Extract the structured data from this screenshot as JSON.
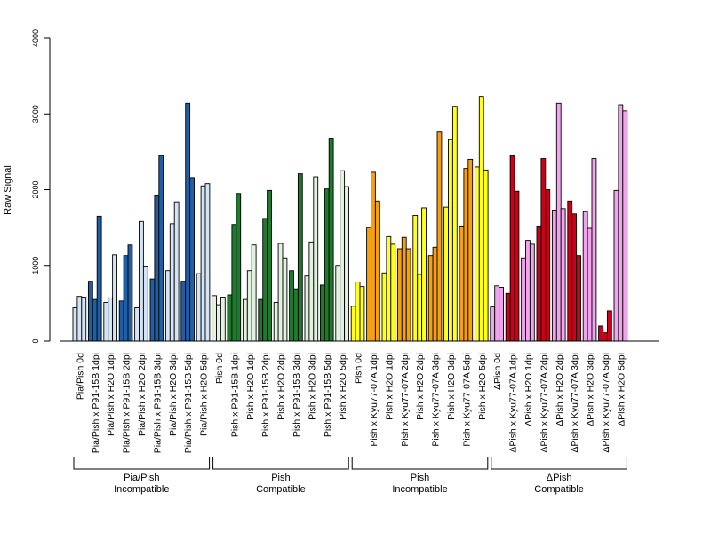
{
  "chart_data": {
    "type": "bar",
    "ylabel": "Raw Signal",
    "ylim": [
      0,
      4000
    ],
    "yticks": [
      0,
      1000,
      2000,
      3000,
      4000
    ],
    "grid": false,
    "legend": "none",
    "colors": {
      "pia": "#1f5fa6",
      "pia_light": "#d4e4f4",
      "pish_compat": "#1f7a2e",
      "pish_compat_light": "#e3f2e0",
      "pish_incompat": "#f5a00f",
      "pish_incompat_light": "#ffff1a",
      "delta": "#cc0018",
      "delta_light": "#f0a4ec"
    },
    "categories": [
      {
        "label": "Pia/Pish 0d",
        "color": "pia_light",
        "values": [
          440,
          590,
          580
        ]
      },
      {
        "label": "Pia/Pish x P91-15B 1dpi",
        "color": "pia",
        "values": [
          790,
          550,
          1650
        ]
      },
      {
        "label": "Pia/Pish x H2O 1dpi",
        "color": "pia_light",
        "values": [
          510,
          570,
          1140
        ]
      },
      {
        "label": "Pia/Pish x P91-15B 2dpi",
        "color": "pia",
        "values": [
          530,
          1130,
          1270
        ]
      },
      {
        "label": "Pia/Pish x H2O 2dpi",
        "color": "pia_light",
        "values": [
          440,
          1580,
          990
        ]
      },
      {
        "label": "Pia/Pish x P91-15B 3dpi",
        "color": "pia",
        "values": [
          820,
          1920,
          2450
        ]
      },
      {
        "label": "Pia/Pish x H2O 3dpi",
        "color": "pia_light",
        "values": [
          930,
          1550,
          1840
        ]
      },
      {
        "label": "Pia/Pish x P91-15B 5dpi",
        "color": "pia",
        "values": [
          790,
          3140,
          2160
        ]
      },
      {
        "label": "Pia/Pish x H2O 5dpi",
        "color": "pia_light",
        "values": [
          890,
          2050,
          2080
        ]
      },
      {
        "label": "Pish 0d",
        "color": "pish_compat_light",
        "values": [
          600,
          480,
          580
        ]
      },
      {
        "label": "Pish x P91-15B 1dpi",
        "color": "pish_compat",
        "values": [
          610,
          1540,
          1950
        ]
      },
      {
        "label": "Pish x H2O 1dpi",
        "color": "pish_compat_light",
        "values": [
          550,
          930,
          1270
        ]
      },
      {
        "label": "Pish x P91-15B 2dpi",
        "color": "pish_compat",
        "values": [
          550,
          1620,
          1990
        ]
      },
      {
        "label": "Pish x H2O 2dpi",
        "color": "pish_compat_light",
        "values": [
          510,
          1290,
          1100
        ]
      },
      {
        "label": "Pish x P91-15B 3dpi",
        "color": "pish_compat",
        "values": [
          930,
          690,
          2210
        ]
      },
      {
        "label": "Pish x H2O 3dpi",
        "color": "pish_compat_light",
        "values": [
          860,
          1310,
          2170
        ]
      },
      {
        "label": "Pish x P91-15B 5dpi",
        "color": "pish_compat",
        "values": [
          740,
          2010,
          2680
        ]
      },
      {
        "label": "Pish x H2O 5dpi",
        "color": "pish_compat_light",
        "values": [
          1000,
          2250,
          2040
        ]
      },
      {
        "label": "Pish 0d",
        "color": "pish_incompat_light",
        "values": [
          460,
          780,
          720
        ]
      },
      {
        "label": "Pish x Kyu77-07A 1dpi",
        "color": "pish_incompat",
        "values": [
          1500,
          2230,
          1850
        ]
      },
      {
        "label": "Pish x H2O 1dpi",
        "color": "pish_incompat_light",
        "values": [
          900,
          1380,
          1280
        ]
      },
      {
        "label": "Pish x Kyu77-07A 2dpi",
        "color": "pish_incompat",
        "values": [
          1220,
          1370,
          1220
        ]
      },
      {
        "label": "Pish x H2O 2dpi",
        "color": "pish_incompat_light",
        "values": [
          1660,
          880,
          1760
        ]
      },
      {
        "label": "Pish x Kyu77-07A 3dpi",
        "color": "pish_incompat",
        "values": [
          1130,
          1240,
          2760
        ]
      },
      {
        "label": "Pish x H2O 3dpi",
        "color": "pish_incompat_light",
        "values": [
          1770,
          2660,
          3100
        ]
      },
      {
        "label": "Pish x Kyu77-07A 5dpi",
        "color": "pish_incompat",
        "values": [
          1520,
          2280,
          2400
        ]
      },
      {
        "label": "Pish x H2O 5dpi",
        "color": "pish_incompat_light",
        "values": [
          2300,
          3230,
          2260
        ]
      },
      {
        "label": "ΔPish 0d",
        "color": "delta_light",
        "values": [
          450,
          730,
          710
        ]
      },
      {
        "label": "ΔPish x Kyu77-07A 1dpi",
        "color": "delta",
        "values": [
          630,
          2450,
          1980
        ]
      },
      {
        "label": "ΔPish x H2O 1dpi",
        "color": "delta_light",
        "values": [
          1100,
          1330,
          1280
        ]
      },
      {
        "label": "ΔPish x Kyu77-07A 2dpi",
        "color": "delta",
        "values": [
          1520,
          2410,
          2000
        ]
      },
      {
        "label": "ΔPish x H2O 2dpi",
        "color": "delta_light",
        "values": [
          1730,
          3140,
          1750
        ]
      },
      {
        "label": "ΔPish x Kyu77-07A 3dpi",
        "color": "delta",
        "values": [
          1850,
          1680,
          1130
        ]
      },
      {
        "label": "ΔPish x H2O 3dpi",
        "color": "delta_light",
        "values": [
          1710,
          1490,
          2410
        ]
      },
      {
        "label": "ΔPish x Kyu77-07A 5dpi",
        "color": "delta",
        "values": [
          200,
          110,
          400
        ]
      },
      {
        "label": "ΔPish x H2O 5dpi",
        "color": "delta_light",
        "values": [
          1990,
          3120,
          3040
        ]
      }
    ],
    "groups": [
      {
        "line1": "Pia/Pish",
        "line2": "Incompatible",
        "start": 0,
        "end": 8
      },
      {
        "line1": "Pish",
        "line2": "Compatible",
        "start": 9,
        "end": 17
      },
      {
        "line1": "Pish",
        "line2": "Incompatible",
        "start": 18,
        "end": 26
      },
      {
        "line1": "ΔPish",
        "line2": "Compatible",
        "start": 27,
        "end": 35
      }
    ]
  }
}
